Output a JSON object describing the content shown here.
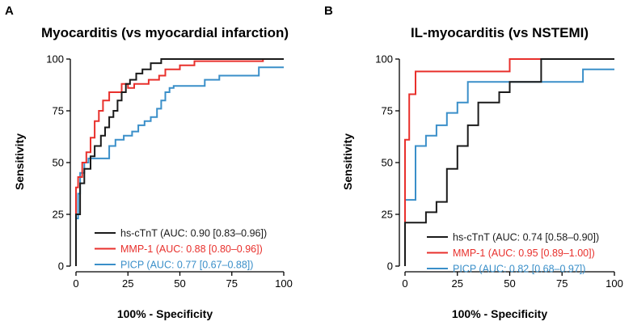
{
  "chart_data": [
    {
      "type": "line",
      "panel": "A",
      "title": "Myocarditis (vs myocardial infarction)",
      "xlabel": "100% - Specificity",
      "ylabel": "Sensitivity",
      "xlim": [
        0,
        100
      ],
      "ylim": [
        0,
        100
      ],
      "xticks": [
        0,
        25,
        50,
        75,
        100
      ],
      "yticks": [
        0,
        25,
        50,
        75,
        100
      ],
      "legend_position": "bottom-right",
      "series": [
        {
          "name": "hs-cTnT (AUC: 0.90 [0.83–0.96])",
          "color": "#1a1a1a",
          "x": [
            0,
            0,
            2,
            2,
            4,
            4,
            7,
            7,
            9,
            9,
            12,
            12,
            14,
            14,
            16,
            16,
            18,
            18,
            20,
            20,
            22,
            22,
            24,
            24,
            26,
            26,
            29,
            29,
            32,
            32,
            36,
            36,
            41,
            41,
            100
          ],
          "y": [
            0,
            25,
            25,
            40,
            40,
            47,
            47,
            53,
            53,
            58,
            58,
            63,
            63,
            67,
            67,
            72,
            72,
            75,
            75,
            80,
            80,
            84,
            84,
            88,
            88,
            90,
            90,
            93,
            93,
            95,
            95,
            98,
            98,
            100,
            100
          ]
        },
        {
          "name": "MMP-1 (AUC: 0.88 [0.80–0.96])",
          "color": "#e8302c",
          "x": [
            0,
            0,
            1,
            1,
            3,
            3,
            5,
            5,
            7,
            7,
            9,
            9,
            11,
            11,
            13,
            13,
            16,
            16,
            22,
            22,
            25,
            25,
            28,
            28,
            35,
            35,
            40,
            40,
            43,
            43,
            50,
            50,
            57,
            57,
            90,
            90,
            100
          ],
          "y": [
            0,
            38,
            38,
            43,
            43,
            50,
            50,
            55,
            55,
            62,
            62,
            70,
            70,
            75,
            75,
            80,
            80,
            84,
            84,
            88,
            88,
            86,
            86,
            88,
            88,
            90,
            90,
            92,
            92,
            95,
            95,
            97,
            97,
            99,
            99,
            100,
            100
          ]
        },
        {
          "name": "PICP (AUC: 0.77 [0.67–0.88])",
          "color": "#3a8fc9",
          "x": [
            0,
            0,
            1,
            1,
            2,
            2,
            4,
            4,
            6,
            6,
            9,
            9,
            16,
            16,
            19,
            19,
            23,
            23,
            27,
            27,
            30,
            30,
            33,
            33,
            36,
            36,
            39,
            39,
            41,
            41,
            43,
            43,
            45,
            45,
            47,
            47,
            62,
            62,
            69,
            69,
            88,
            88,
            100
          ],
          "y": [
            0,
            23,
            23,
            35,
            35,
            45,
            45,
            50,
            50,
            52,
            52,
            52,
            52,
            58,
            58,
            61,
            61,
            63,
            63,
            65,
            65,
            68,
            68,
            70,
            70,
            72,
            72,
            76,
            76,
            80,
            80,
            84,
            84,
            86,
            86,
            87,
            87,
            90,
            90,
            92,
            92,
            96,
            96
          ]
        }
      ]
    },
    {
      "type": "line",
      "panel": "B",
      "title": "IL-myocarditis (vs NSTEMI)",
      "xlabel": "100% - Specificity",
      "ylabel": "Sensitivity",
      "xlim": [
        0,
        100
      ],
      "ylim": [
        0,
        100
      ],
      "xticks": [
        0,
        25,
        50,
        75,
        100
      ],
      "yticks": [
        0,
        25,
        50,
        75,
        100
      ],
      "legend_position": "bottom-right",
      "series": [
        {
          "name": "hs-cTnT (AUC: 0.74 [0.58–0.90])",
          "color": "#1a1a1a",
          "x": [
            0,
            0,
            10,
            10,
            15,
            15,
            20,
            20,
            25,
            25,
            30,
            30,
            35,
            35,
            45,
            45,
            50,
            50,
            55,
            55,
            65,
            65,
            100
          ],
          "y": [
            0,
            21,
            21,
            26,
            26,
            31,
            31,
            47,
            47,
            58,
            58,
            68,
            68,
            79,
            79,
            84,
            84,
            89,
            89,
            89,
            89,
            100,
            100
          ]
        },
        {
          "name": "MMP-1 (AUC: 0.95 [0.89–1.00])",
          "color": "#e8302c",
          "x": [
            0,
            0,
            2,
            2,
            5,
            5,
            10,
            10,
            50,
            50,
            100
          ],
          "y": [
            0,
            61,
            61,
            83,
            83,
            94,
            94,
            94,
            94,
            100,
            100
          ]
        },
        {
          "name": "PICP (AUC: 0.82 [0.68–0.97])",
          "color": "#3a8fc9",
          "x": [
            0,
            0,
            5,
            5,
            10,
            10,
            15,
            15,
            20,
            20,
            25,
            25,
            30,
            30,
            85,
            85,
            100
          ],
          "y": [
            0,
            32,
            32,
            58,
            58,
            63,
            63,
            68,
            68,
            74,
            74,
            79,
            79,
            89,
            89,
            95,
            95
          ]
        }
      ]
    }
  ]
}
